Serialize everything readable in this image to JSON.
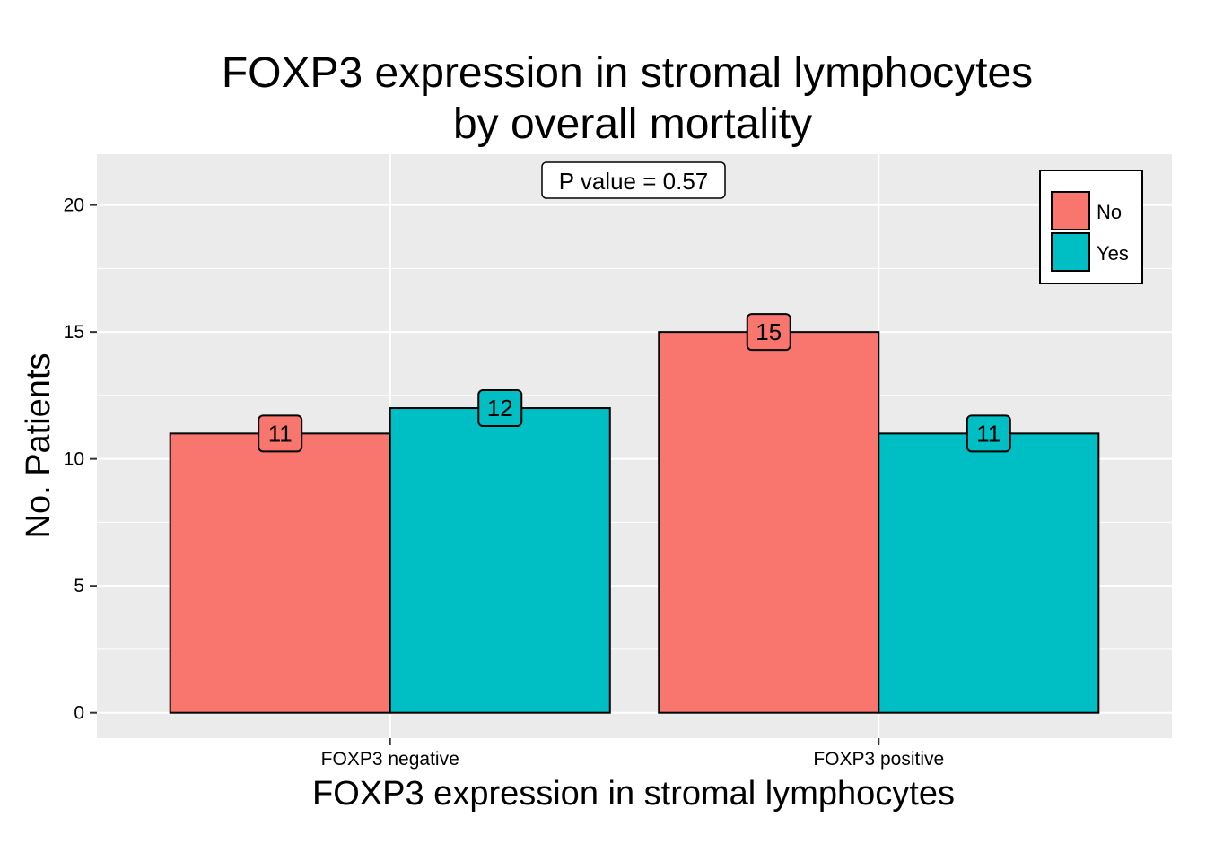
{
  "chart_data": {
    "type": "bar",
    "title_lines": [
      "FOXP3 expression in stromal lymphocytes",
      "by overall mortality"
    ],
    "xlabel": "FOXP3 expression in stromal lymphocytes",
    "ylabel": "No. Patients",
    "categories": [
      "FOXP3 negative",
      "FOXP3 positive"
    ],
    "series": [
      {
        "name": "No",
        "values": [
          11,
          15
        ],
        "color": "#F8766D"
      },
      {
        "name": "Yes",
        "values": [
          12,
          11
        ],
        "color": "#00BFC4"
      }
    ],
    "ylim": [
      -1,
      22
    ],
    "yticks": [
      0,
      5,
      10,
      15,
      20
    ],
    "annotation": "P value = 0.57",
    "legend_position": "top-right",
    "grid": true,
    "panel_background": "#EBEBEB",
    "grid_color": "#FFFFFF"
  }
}
